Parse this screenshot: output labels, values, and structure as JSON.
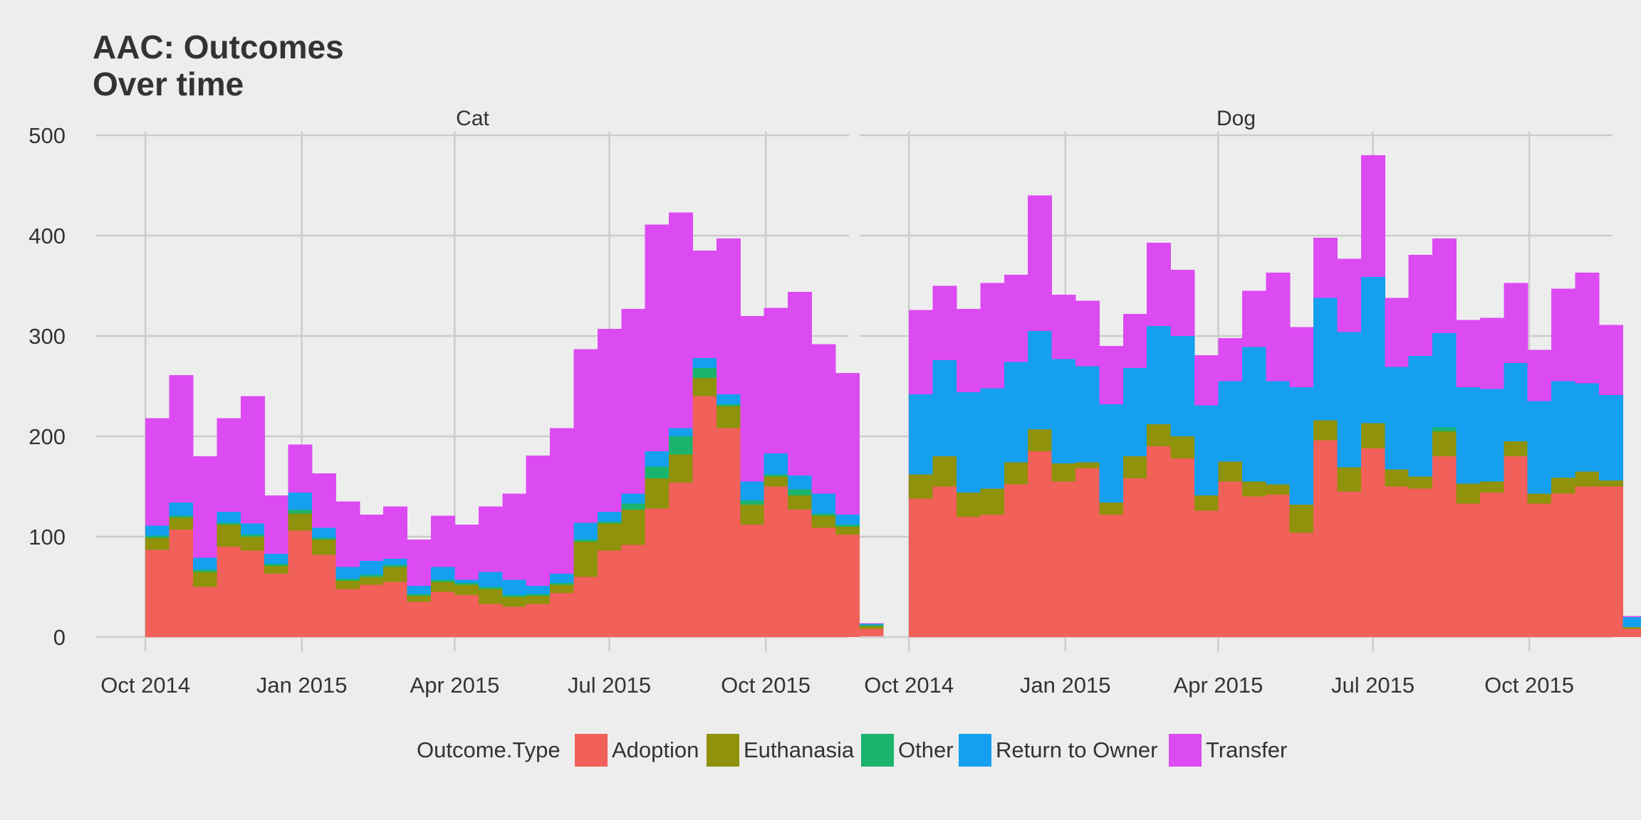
{
  "chart_data": {
    "type": "bar",
    "stacked": true,
    "title": [
      "AAC: Outcomes",
      "Over time"
    ],
    "xlabel": "",
    "ylabel": "",
    "ylim": [
      0,
      500
    ],
    "y_ticks": [
      0,
      100,
      200,
      300,
      400,
      500
    ],
    "x_ticks": [
      "2014-10-01",
      "2015-01-01",
      "2015-04-01",
      "2015-07-01",
      "2015-10-01"
    ],
    "x_tick_labels": [
      "Oct 2014",
      "Jan 2015",
      "Apr 2015",
      "Jul 2015",
      "Oct 2015"
    ],
    "xlim": [
      "2014-09-02",
      "2015-11-19"
    ],
    "bin_start": "2014-10-01",
    "bin_width_days": 14,
    "grid": true,
    "legend": {
      "title": "Outcome.Type",
      "placement": "bottom",
      "entries": [
        "Adoption",
        "Euthanasia",
        "Other",
        "Return to Owner",
        "Transfer"
      ]
    },
    "colors": {
      "Adoption": "#F2605A",
      "Euthanasia": "#8F920A",
      "Other": "#1AB46C",
      "Return to Owner": "#149FEF",
      "Transfer": "#DC4BF2"
    },
    "panels": [
      {
        "label": "Cat",
        "series": [
          {
            "name": "Adoption",
            "values": [
              87,
              107,
              50,
              90,
              86,
              63,
              106,
              82,
              48,
              52,
              55,
              35,
              45,
              42,
              33,
              30,
              33,
              44,
              60,
              86,
              92,
              128,
              154,
              240,
              208,
              112,
              150,
              127,
              109,
              102,
              8
            ]
          },
          {
            "name": "Euthanasia",
            "values": [
              12,
              12,
              15,
              22,
              14,
              8,
              17,
              15,
              8,
              8,
              15,
              6,
              10,
              10,
              15,
              10,
              8,
              8,
              35,
              27,
              35,
              30,
              28,
              18,
              22,
              20,
              10,
              14,
              12,
              8,
              3
            ]
          },
          {
            "name": "Other",
            "values": [
              2,
              2,
              2,
              2,
              2,
              2,
              4,
              2,
              2,
              2,
              2,
              2,
              2,
              2,
              2,
              2,
              2,
              2,
              2,
              2,
              6,
              12,
              18,
              10,
              2,
              4,
              2,
              6,
              2,
              2,
              1
            ]
          },
          {
            "name": "Return to Owner",
            "values": [
              10,
              13,
              12,
              11,
              11,
              10,
              17,
              10,
              12,
              14,
              6,
              8,
              13,
              3,
              15,
              15,
              8,
              9,
              17,
              10,
              10,
              15,
              8,
              10,
              10,
              19,
              21,
              14,
              20,
              10,
              1
            ]
          },
          {
            "name": "Transfer",
            "values": [
              107,
              127,
              101,
              93,
              127,
              58,
              48,
              54,
              65,
              46,
              52,
              46,
              51,
              55,
              65,
              86,
              130,
              145,
              173,
              182,
              184,
              226,
              215,
              107,
              155,
              165,
              145,
              183,
              149,
              141,
              1
            ]
          }
        ]
      },
      {
        "label": "Dog",
        "series": [
          {
            "name": "Adoption",
            "values": [
              138,
              150,
              120,
              122,
              152,
              185,
              155,
              168,
              122,
              158,
              190,
              178,
              126,
              155,
              140,
              142,
              104,
              196,
              145,
              188,
              150,
              148,
              180,
              133,
              144,
              180,
              133,
              143,
              150,
              150,
              8
            ]
          },
          {
            "name": "Euthanasia",
            "values": [
              24,
              30,
              24,
              26,
              22,
              22,
              18,
              6,
              12,
              22,
              22,
              22,
              15,
              20,
              15,
              10,
              28,
              20,
              24,
              25,
              17,
              12,
              25,
              20,
              11,
              15,
              10,
              16,
              15,
              6,
              2
            ]
          },
          {
            "name": "Other",
            "values": [
              0,
              0,
              0,
              0,
              0,
              0,
              0,
              0,
              0,
              0,
              0,
              0,
              0,
              0,
              0,
              0,
              0,
              0,
              0,
              0,
              0,
              0,
              4,
              0,
              0,
              0,
              0,
              0,
              0,
              0,
              0
            ]
          },
          {
            "name": "Return to Owner",
            "values": [
              80,
              96,
              100,
              100,
              100,
              98,
              104,
              96,
              98,
              88,
              98,
              100,
              90,
              80,
              134,
              103,
              117,
              122,
              135,
              146,
              102,
              120,
              94,
              96,
              92,
              78,
              92,
              96,
              88,
              85,
              10
            ]
          },
          {
            "name": "Transfer",
            "values": [
              84,
              74,
              83,
              105,
              87,
              135,
              64,
              65,
              58,
              54,
              83,
              66,
              50,
              43,
              56,
              108,
              60,
              60,
              73,
              121,
              69,
              101,
              94,
              67,
              71,
              80,
              51,
              92,
              110,
              70,
              1
            ]
          }
        ]
      }
    ]
  }
}
